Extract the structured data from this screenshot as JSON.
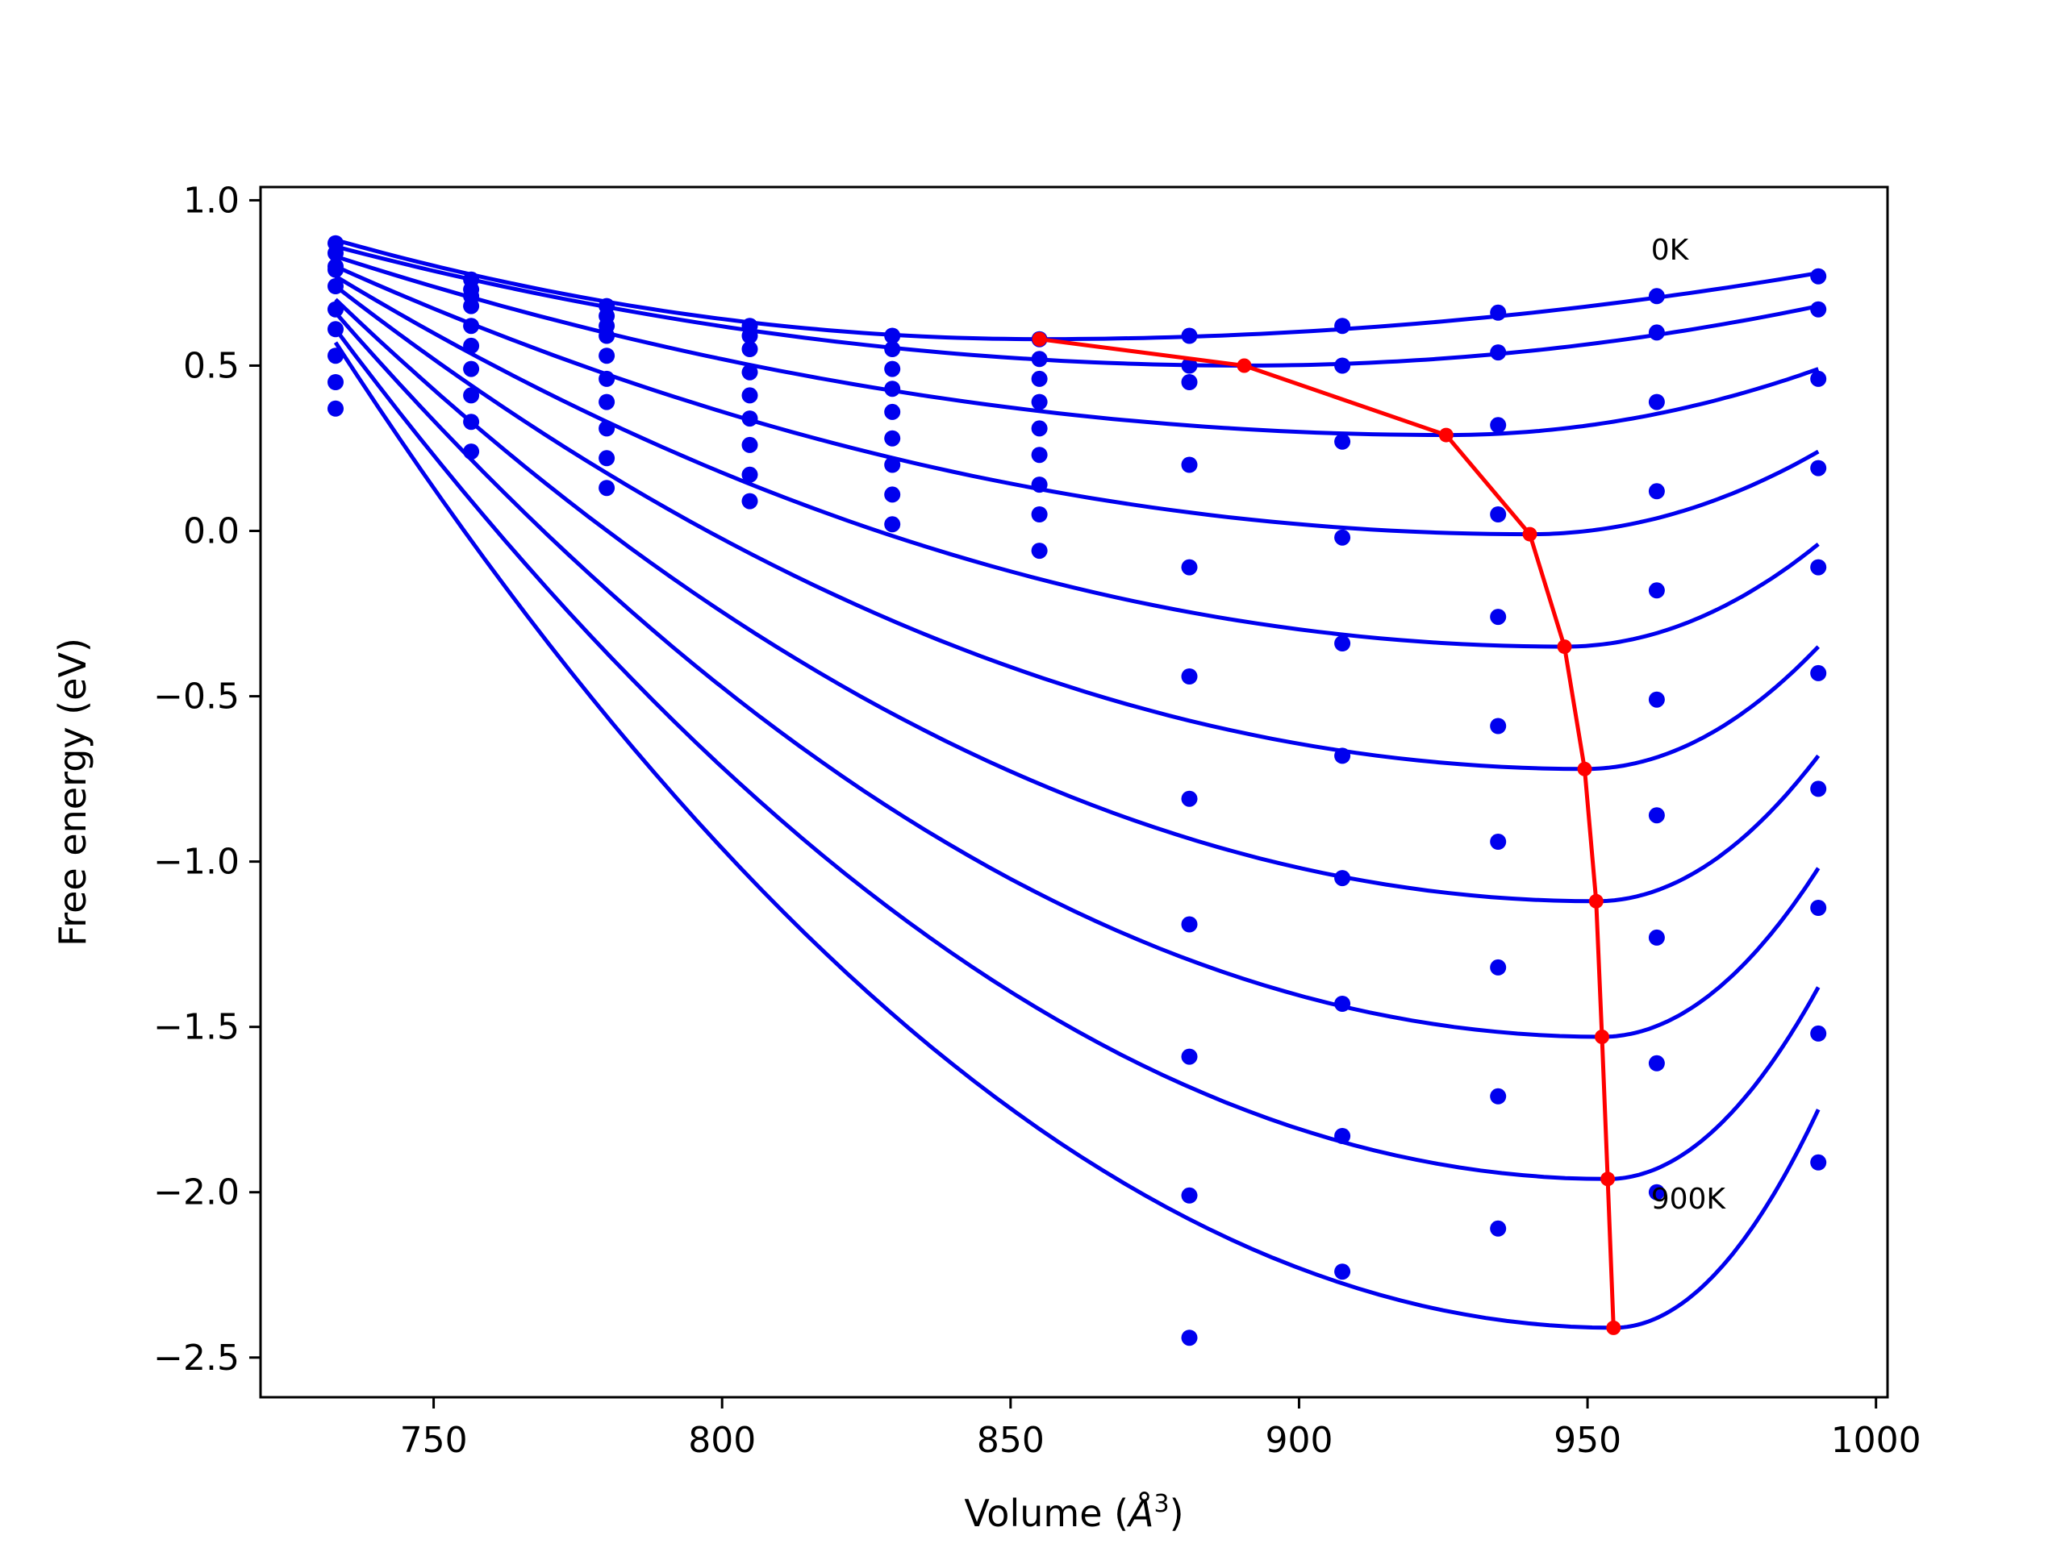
{
  "chart_data": {
    "type": "line",
    "xlabel": "Volume (",
    "xlabel_unit": "Å",
    "xlabel_exp": "3",
    "xlabel_close": ")",
    "ylabel": "Free energy (eV)",
    "xlim": [
      720,
      1002
    ],
    "ylim": [
      -2.62,
      1.04
    ],
    "xticks": [
      750,
      800,
      850,
      900,
      950,
      1000
    ],
    "xtick_labels": [
      "750",
      "800",
      "850",
      "900",
      "950",
      "1000"
    ],
    "yticks": [
      1.0,
      0.5,
      0.0,
      -0.5,
      -1.0,
      -1.5,
      -2.0,
      -2.5
    ],
    "ytick_labels": [
      "1.0",
      "0.5",
      "0.0",
      "−0.5",
      "−1.0",
      "−1.5",
      "−2.0",
      "−2.5"
    ],
    "grid": false,
    "annotations": [
      {
        "text": "0K",
        "x": 961,
        "y": 0.82
      },
      {
        "text": "900K",
        "x": 961,
        "y": -2.05
      }
    ],
    "sample_volumes": [
      733,
      756.5,
      780,
      804.8,
      829.5,
      855,
      881,
      907.5,
      934.5,
      962,
      990
    ],
    "series": [
      {
        "points": [
          0.87,
          0.76,
          0.68,
          0.62,
          0.59,
          0.58,
          0.59,
          0.62,
          0.66,
          0.71,
          0.77
        ],
        "fit_minimum": [
          855,
          0.58
        ]
      },
      {
        "points": [
          0.84,
          0.73,
          0.65,
          0.59,
          0.55,
          0.52,
          0.5,
          0.5,
          0.54,
          0.6,
          0.67
        ],
        "fit_minimum": [
          890.5,
          0.5
        ]
      },
      {
        "points": [
          0.8,
          0.71,
          0.62,
          0.55,
          0.49,
          0.46,
          0.45,
          0.27,
          0.32,
          0.39,
          0.46
        ],
        "fit_minimum": [
          925.5,
          0.29
        ]
      },
      {
        "points": [
          0.79,
          0.68,
          0.59,
          0.48,
          0.43,
          0.39,
          0.2,
          -0.02,
          0.05,
          0.12,
          0.19
        ],
        "fit_minimum": [
          940,
          -0.01
        ]
      },
      {
        "points": [
          0.74,
          0.62,
          0.53,
          0.41,
          0.36,
          0.31,
          -0.11,
          -0.34,
          -0.26,
          -0.18,
          -0.11
        ],
        "fit_minimum": [
          946,
          -0.35
        ]
      },
      {
        "points": [
          0.67,
          0.56,
          0.46,
          0.34,
          0.28,
          0.23,
          -0.44,
          -0.68,
          -0.59,
          -0.51,
          -0.43
        ],
        "fit_minimum": [
          949.5,
          -0.72
        ]
      },
      {
        "points": [
          0.61,
          0.49,
          0.39,
          0.26,
          0.2,
          0.14,
          -0.81,
          -1.05,
          -0.94,
          -0.86,
          -0.78
        ],
        "fit_minimum": [
          951.5,
          -1.12
        ]
      },
      {
        "points": [
          0.53,
          0.41,
          0.31,
          0.17,
          0.11,
          0.05,
          -1.19,
          -1.43,
          -1.32,
          -1.23,
          -1.14
        ],
        "fit_minimum": [
          952.5,
          -1.53
        ]
      },
      {
        "points": [
          0.45,
          0.33,
          0.22,
          0.09,
          0.02,
          -0.06,
          -1.59,
          -1.83,
          -1.71,
          -1.61,
          -1.52
        ],
        "fit_minimum": [
          953.5,
          -1.96
        ]
      },
      {
        "points": [
          0.37,
          0.24,
          0.13,
          null,
          null,
          null,
          -2.01,
          -2.24,
          -2.11,
          -2.0,
          -1.91
        ],
        "fit_minimum": [
          954.5,
          -2.41
        ]
      }
    ],
    "extra_points": [
      [
        881,
        -2.44
      ]
    ],
    "fit_curves": [
      {
        "start": [
          733,
          0.88
        ],
        "min": [
          855,
          0.58
        ],
        "end": [
          990,
          0.78
        ]
      },
      {
        "start": [
          733,
          0.86
        ],
        "min": [
          890.5,
          0.5
        ],
        "end": [
          990,
          0.68
        ]
      },
      {
        "start": [
          733,
          0.83
        ],
        "min": [
          925.5,
          0.29
        ],
        "end": [
          990,
          0.49
        ]
      },
      {
        "start": [
          733,
          0.8
        ],
        "min": [
          940,
          -0.01
        ],
        "end": [
          990,
          0.24
        ]
      },
      {
        "start": [
          733,
          0.77
        ],
        "min": [
          946,
          -0.35
        ],
        "end": [
          990,
          -0.04
        ]
      },
      {
        "start": [
          733,
          0.74
        ],
        "min": [
          949.5,
          -0.72
        ],
        "end": [
          990,
          -0.35
        ]
      },
      {
        "start": [
          733,
          0.7
        ],
        "min": [
          951.5,
          -1.12
        ],
        "end": [
          990,
          -0.68
        ]
      },
      {
        "start": [
          733,
          0.66
        ],
        "min": [
          952.5,
          -1.53
        ],
        "end": [
          990,
          -1.02
        ]
      },
      {
        "start": [
          733,
          0.61
        ],
        "min": [
          953.5,
          -1.96
        ],
        "end": [
          990,
          -1.38
        ]
      },
      {
        "start": [
          733,
          0.57
        ],
        "min": [
          954.5,
          -2.41
        ],
        "end": [
          990,
          -1.75
        ]
      }
    ],
    "minimum_path": [
      [
        855,
        0.58
      ],
      [
        890.5,
        0.5
      ],
      [
        925.5,
        0.29
      ],
      [
        940,
        -0.01
      ],
      [
        946,
        -0.35
      ],
      [
        949.5,
        -0.72
      ],
      [
        951.5,
        -1.12
      ],
      [
        952.5,
        -1.53
      ],
      [
        953.5,
        -1.96
      ],
      [
        954.5,
        -2.41
      ]
    ],
    "colors": {
      "curves": "#0000ee",
      "points": "#0000ee",
      "minimum_path": "#ff0000",
      "axes": "#000000"
    }
  }
}
